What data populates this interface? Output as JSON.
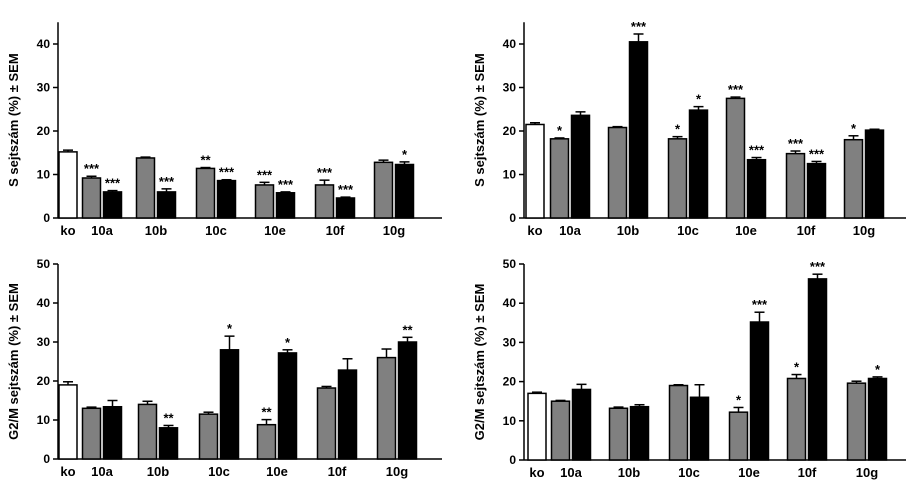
{
  "chart_data": [
    {
      "type": "bar",
      "ylabel": "S sejtszám (%) ± SEM",
      "ylim": [
        0,
        45
      ],
      "yticks": [
        0,
        10,
        20,
        30,
        40
      ],
      "categories": [
        "ko",
        "10a",
        "10b",
        "10c",
        "10e",
        "10f",
        "10g"
      ],
      "colors": {
        "ko": "#ffffff",
        "gray": "#808080",
        "black": "#000000"
      },
      "bars": [
        {
          "cat": "ko",
          "color": "ko",
          "value": 15.2,
          "err": 0.4,
          "sig": ""
        },
        {
          "cat": "10a",
          "color": "gray",
          "value": 9.2,
          "err": 0.4,
          "sig": "***"
        },
        {
          "cat": "10a",
          "color": "black",
          "value": 6.0,
          "err": 0.3,
          "sig": "***"
        },
        {
          "cat": "10b",
          "color": "gray",
          "value": 13.8,
          "err": 0.2,
          "sig": ""
        },
        {
          "cat": "10b",
          "color": "black",
          "value": 6.0,
          "err": 0.7,
          "sig": "***"
        },
        {
          "cat": "10c",
          "color": "gray",
          "value": 11.4,
          "err": 0.2,
          "sig": "**"
        },
        {
          "cat": "10c",
          "color": "black",
          "value": 8.6,
          "err": 0.2,
          "sig": "***"
        },
        {
          "cat": "10e",
          "color": "gray",
          "value": 7.6,
          "err": 0.6,
          "sig": "***"
        },
        {
          "cat": "10e",
          "color": "black",
          "value": 5.8,
          "err": 0.2,
          "sig": "***"
        },
        {
          "cat": "10f",
          "color": "gray",
          "value": 7.6,
          "err": 1.1,
          "sig": "***"
        },
        {
          "cat": "10f",
          "color": "black",
          "value": 4.6,
          "err": 0.2,
          "sig": "***"
        },
        {
          "cat": "10g",
          "color": "gray",
          "value": 12.8,
          "err": 0.5,
          "sig": ""
        },
        {
          "cat": "10g",
          "color": "black",
          "value": 12.3,
          "err": 0.6,
          "sig": "*"
        }
      ]
    },
    {
      "type": "bar",
      "ylabel": "S sejtszám (%) ± SEM",
      "ylim": [
        0,
        45
      ],
      "yticks": [
        0,
        10,
        20,
        30,
        40
      ],
      "categories": [
        "ko",
        "10a",
        "10b",
        "10c",
        "10e",
        "10f",
        "10g"
      ],
      "colors": {
        "ko": "#ffffff",
        "gray": "#808080",
        "black": "#000000"
      },
      "bars": [
        {
          "cat": "ko",
          "color": "ko",
          "value": 21.5,
          "err": 0.4,
          "sig": ""
        },
        {
          "cat": "10a",
          "color": "gray",
          "value": 18.2,
          "err": 0.2,
          "sig": "*"
        },
        {
          "cat": "10a",
          "color": "black",
          "value": 23.6,
          "err": 0.8,
          "sig": ""
        },
        {
          "cat": "10b",
          "color": "gray",
          "value": 20.8,
          "err": 0.2,
          "sig": ""
        },
        {
          "cat": "10b",
          "color": "black",
          "value": 40.5,
          "err": 1.8,
          "sig": "***"
        },
        {
          "cat": "10c",
          "color": "gray",
          "value": 18.2,
          "err": 0.5,
          "sig": "*"
        },
        {
          "cat": "10c",
          "color": "black",
          "value": 24.8,
          "err": 0.8,
          "sig": "*"
        },
        {
          "cat": "10e",
          "color": "gray",
          "value": 27.5,
          "err": 0.3,
          "sig": "***"
        },
        {
          "cat": "10e",
          "color": "black",
          "value": 13.4,
          "err": 0.5,
          "sig": "***"
        },
        {
          "cat": "10f",
          "color": "gray",
          "value": 14.8,
          "err": 0.6,
          "sig": "***"
        },
        {
          "cat": "10f",
          "color": "black",
          "value": 12.5,
          "err": 0.5,
          "sig": "***"
        },
        {
          "cat": "10g",
          "color": "gray",
          "value": 18.0,
          "err": 0.9,
          "sig": "*"
        },
        {
          "cat": "10g",
          "color": "black",
          "value": 20.2,
          "err": 0.2,
          "sig": ""
        }
      ]
    },
    {
      "type": "bar",
      "ylabel": "G2/M sejtszám (%) ± SEM",
      "ylim": [
        0,
        50
      ],
      "yticks": [
        0,
        10,
        20,
        30,
        40,
        50
      ],
      "categories": [
        "ko",
        "10a",
        "10b",
        "10c",
        "10e",
        "10f",
        "10g"
      ],
      "colors": {
        "ko": "#ffffff",
        "gray": "#808080",
        "black": "#000000"
      },
      "bars": [
        {
          "cat": "ko",
          "color": "ko",
          "value": 19.0,
          "err": 0.8,
          "sig": ""
        },
        {
          "cat": "10a",
          "color": "gray",
          "value": 13.0,
          "err": 0.3,
          "sig": ""
        },
        {
          "cat": "10a",
          "color": "black",
          "value": 13.4,
          "err": 1.6,
          "sig": ""
        },
        {
          "cat": "10b",
          "color": "gray",
          "value": 14.0,
          "err": 0.8,
          "sig": ""
        },
        {
          "cat": "10b",
          "color": "black",
          "value": 8.0,
          "err": 0.6,
          "sig": "**"
        },
        {
          "cat": "10c",
          "color": "gray",
          "value": 11.5,
          "err": 0.5,
          "sig": ""
        },
        {
          "cat": "10c",
          "color": "black",
          "value": 28.0,
          "err": 3.5,
          "sig": "*"
        },
        {
          "cat": "10e",
          "color": "gray",
          "value": 8.8,
          "err": 1.3,
          "sig": "**"
        },
        {
          "cat": "10e",
          "color": "black",
          "value": 27.2,
          "err": 0.8,
          "sig": "*"
        },
        {
          "cat": "10f",
          "color": "gray",
          "value": 18.2,
          "err": 0.4,
          "sig": ""
        },
        {
          "cat": "10f",
          "color": "black",
          "value": 22.8,
          "err": 2.9,
          "sig": ""
        },
        {
          "cat": "10g",
          "color": "gray",
          "value": 26.0,
          "err": 2.2,
          "sig": ""
        },
        {
          "cat": "10g",
          "color": "black",
          "value": 30.0,
          "err": 1.2,
          "sig": "**"
        }
      ]
    },
    {
      "type": "bar",
      "ylabel": "G2/M sejtszám (%) ± SEM",
      "ylim": [
        0,
        50
      ],
      "yticks": [
        0,
        10,
        20,
        30,
        40,
        50
      ],
      "categories": [
        "ko",
        "10a",
        "10b",
        "10c",
        "10e",
        "10f",
        "10g"
      ],
      "colors": {
        "ko": "#ffffff",
        "gray": "#808080",
        "black": "#000000"
      },
      "bars": [
        {
          "cat": "ko",
          "color": "ko",
          "value": 17.0,
          "err": 0.3,
          "sig": ""
        },
        {
          "cat": "10a",
          "color": "gray",
          "value": 15.0,
          "err": 0.2,
          "sig": ""
        },
        {
          "cat": "10a",
          "color": "black",
          "value": 18.0,
          "err": 1.3,
          "sig": ""
        },
        {
          "cat": "10b",
          "color": "gray",
          "value": 13.2,
          "err": 0.3,
          "sig": ""
        },
        {
          "cat": "10b",
          "color": "black",
          "value": 13.6,
          "err": 0.5,
          "sig": ""
        },
        {
          "cat": "10c",
          "color": "gray",
          "value": 19.0,
          "err": 0.2,
          "sig": ""
        },
        {
          "cat": "10c",
          "color": "black",
          "value": 16.0,
          "err": 3.2,
          "sig": ""
        },
        {
          "cat": "10e",
          "color": "gray",
          "value": 12.2,
          "err": 1.2,
          "sig": "*"
        },
        {
          "cat": "10e",
          "color": "black",
          "value": 35.2,
          "err": 2.5,
          "sig": "***"
        },
        {
          "cat": "10f",
          "color": "gray",
          "value": 20.8,
          "err": 1.0,
          "sig": "*"
        },
        {
          "cat": "10f",
          "color": "black",
          "value": 46.2,
          "err": 1.2,
          "sig": "***"
        },
        {
          "cat": "10g",
          "color": "gray",
          "value": 19.6,
          "err": 0.5,
          "sig": ""
        },
        {
          "cat": "10g",
          "color": "black",
          "value": 20.8,
          "err": 0.4,
          "sig": "*"
        }
      ]
    }
  ]
}
